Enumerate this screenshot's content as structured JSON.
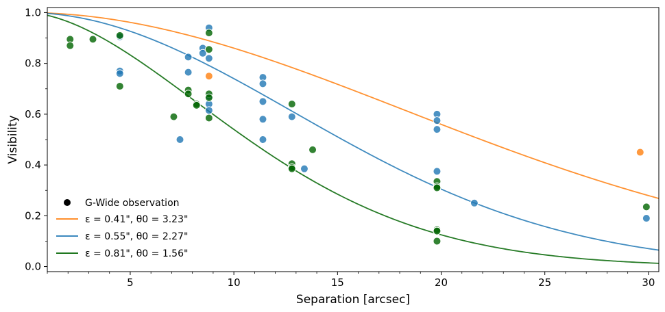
{
  "chart_data": {
    "type": "scatter",
    "xlabel": "Separation [arcsec]",
    "ylabel": "Visibility",
    "xlim": [
      1.0,
      30.5
    ],
    "ylim": [
      -0.02,
      1.02
    ],
    "xticks": [
      5,
      10,
      15,
      20,
      25,
      30
    ],
    "xtick_labels": [
      "5",
      "10",
      "15",
      "20",
      "25",
      "30"
    ],
    "yticks": [
      0.0,
      0.2,
      0.4,
      0.6,
      0.8,
      1.0
    ],
    "ytick_labels": [
      "0.0",
      "0.2",
      "0.4",
      "0.6",
      "0.8",
      "1.0"
    ],
    "grid": false,
    "legend_position": "lower-left",
    "legend": {
      "observation_label": "G-Wide observation",
      "entries": [
        {
          "label": "ε = 0.41\", θ0 = 3.23\"",
          "color": "#ff7f0e"
        },
        {
          "label": "ε = 0.55\", θ0 = 2.27\"",
          "color": "#1f77b4"
        },
        {
          "label": "ε = 0.81\", θ0 = 1.56\"",
          "color": "#006400"
        }
      ]
    },
    "curves": [
      {
        "color": "#ff7f0e",
        "theta0": 3.23,
        "epsilon": 0.41
      },
      {
        "color": "#1f77b4",
        "theta0": 2.27,
        "epsilon": 0.55
      },
      {
        "color": "#006400",
        "theta0": 1.56,
        "epsilon": 0.81
      }
    ],
    "series": [
      {
        "color": "#ff7f0e",
        "points": [
          [
            8.8,
            0.75
          ],
          [
            29.6,
            0.45
          ]
        ]
      },
      {
        "color": "#1f77b4",
        "points": [
          [
            4.5,
            0.905
          ],
          [
            4.5,
            0.77
          ],
          [
            4.5,
            0.76
          ],
          [
            7.4,
            0.5
          ],
          [
            7.8,
            0.825
          ],
          [
            7.8,
            0.765
          ],
          [
            8.5,
            0.86
          ],
          [
            8.5,
            0.84
          ],
          [
            8.8,
            0.94
          ],
          [
            8.8,
            0.82
          ],
          [
            8.8,
            0.64
          ],
          [
            8.8,
            0.615
          ],
          [
            8.8,
            0.67
          ],
          [
            11.4,
            0.745
          ],
          [
            11.4,
            0.72
          ],
          [
            11.4,
            0.65
          ],
          [
            11.4,
            0.58
          ],
          [
            11.4,
            0.5
          ],
          [
            12.8,
            0.59
          ],
          [
            13.4,
            0.385
          ],
          [
            19.8,
            0.6
          ],
          [
            19.8,
            0.575
          ],
          [
            19.8,
            0.54
          ],
          [
            19.8,
            0.375
          ],
          [
            21.6,
            0.25
          ],
          [
            29.9,
            0.19
          ]
        ]
      },
      {
        "color": "#006400",
        "points": [
          [
            2.1,
            0.895
          ],
          [
            2.1,
            0.87
          ],
          [
            3.2,
            0.895
          ],
          [
            4.5,
            0.91
          ],
          [
            4.5,
            0.71
          ],
          [
            7.1,
            0.59
          ],
          [
            7.8,
            0.695
          ],
          [
            7.8,
            0.68
          ],
          [
            8.2,
            0.64
          ],
          [
            8.2,
            0.635
          ],
          [
            8.8,
            0.92
          ],
          [
            8.8,
            0.855
          ],
          [
            8.8,
            0.68
          ],
          [
            8.8,
            0.665
          ],
          [
            8.8,
            0.585
          ],
          [
            12.8,
            0.64
          ],
          [
            12.8,
            0.405
          ],
          [
            12.8,
            0.39
          ],
          [
            12.8,
            0.385
          ],
          [
            13.8,
            0.46
          ],
          [
            19.8,
            0.335
          ],
          [
            19.8,
            0.315
          ],
          [
            19.8,
            0.31
          ],
          [
            19.8,
            0.145
          ],
          [
            19.8,
            0.14
          ],
          [
            19.8,
            0.1
          ],
          [
            29.9,
            0.235
          ]
        ]
      }
    ]
  }
}
